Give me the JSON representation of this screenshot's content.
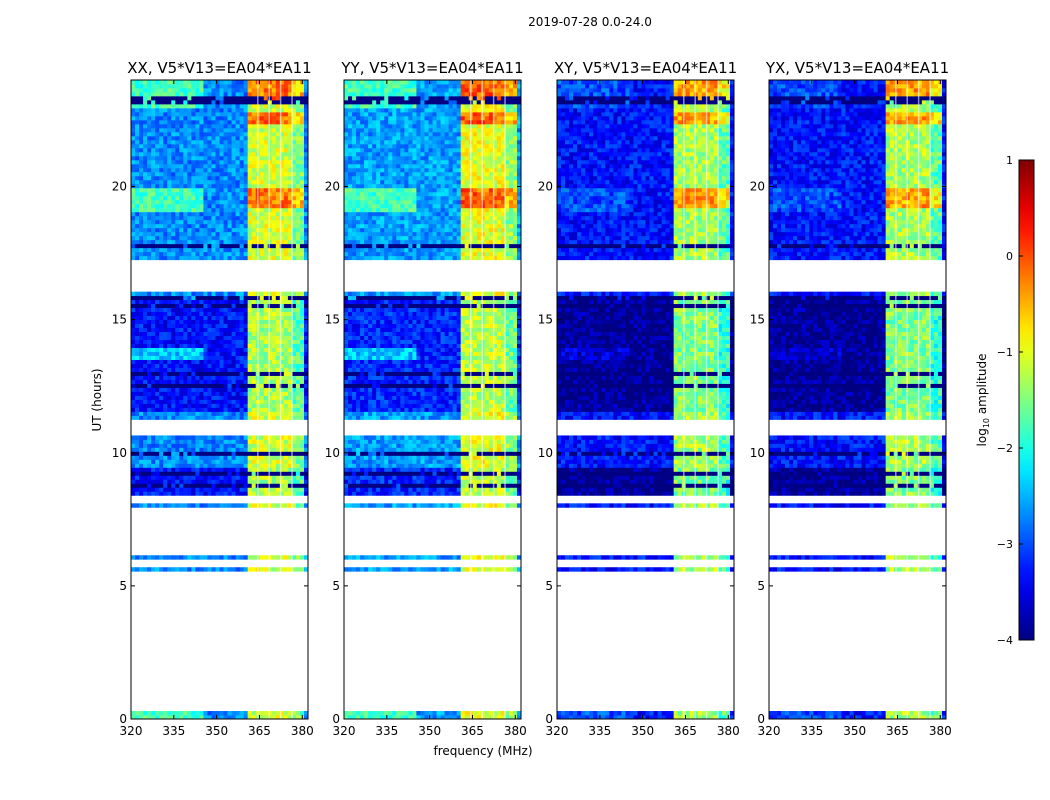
{
  "chart_data": {
    "type": "heatmap",
    "suptitle": "2019-07-28 0.0-24.0",
    "xlabel": "frequency (MHz)",
    "ylabel": "UT (hours)",
    "xlim": [
      320,
      382
    ],
    "ylim": [
      0,
      24
    ],
    "xticks": [
      "320",
      "335",
      "350",
      "365",
      "380"
    ],
    "xtick_values": [
      320,
      335,
      350,
      365,
      380
    ],
    "yticks": [
      "0",
      "5",
      "10",
      "15",
      "20"
    ],
    "ytick_values": [
      0,
      5,
      10,
      15,
      20
    ],
    "panels": [
      {
        "title": "XX, V5*V13=EA04*EA11",
        "base": -2.7,
        "band_base": -1.1,
        "blue_tint": 0.9
      },
      {
        "title": "YY, V5*V13=EA04*EA11",
        "base": -2.6,
        "band_base": -1.0,
        "blue_tint": 0.8
      },
      {
        "title": "XY, V5*V13=EA04*EA11",
        "base": -3.3,
        "band_base": -1.3,
        "blue_tint": 0.3
      },
      {
        "title": "YX, V5*V13=EA04*EA11",
        "base": -3.3,
        "band_base": -1.3,
        "blue_tint": 0.3
      }
    ],
    "data_time_ranges_hours": [
      [
        0.0,
        0.3
      ],
      [
        5.5,
        5.7
      ],
      [
        6.0,
        6.1
      ],
      [
        8.0,
        8.1
      ],
      [
        8.4,
        10.6
      ],
      [
        11.2,
        11.5
      ],
      [
        11.6,
        16.1
      ],
      [
        17.2,
        24.0
      ]
    ],
    "flagged_time_hours": [
      23.2,
      23.3,
      22.2,
      21.3,
      21.0,
      20.4,
      19.2,
      18.3,
      17.8,
      15.8,
      15.5,
      13.0,
      12.5,
      10.0,
      9.2,
      8.8
    ],
    "band_frequency_ranges_mhz": [
      [
        360.5,
        364.5
      ],
      [
        364.5,
        368.0
      ],
      [
        368.5,
        372.0
      ],
      [
        372.5,
        376.0
      ],
      [
        376.5,
        380.0
      ]
    ],
    "colorbar": {
      "label": "log10 amplitude",
      "label_main": "log",
      "label_sub": "10",
      "label_rest": " amplitude",
      "min": -4,
      "max": 1,
      "ticks": [
        "1",
        "0",
        "−1",
        "−2",
        "−3",
        "−4"
      ],
      "tick_values": [
        1,
        0,
        -1,
        -2,
        -3,
        -4
      ],
      "colormap": "jet"
    }
  }
}
